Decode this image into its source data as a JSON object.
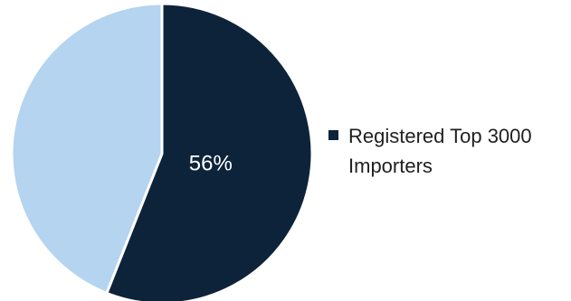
{
  "chart_data": {
    "type": "pie",
    "title": "",
    "slices": [
      {
        "name": "Registered Top 3000 Importers",
        "value": 56,
        "label": "56%",
        "color": "#0d233a",
        "in_legend": true
      },
      {
        "name": "",
        "value": 44,
        "label": "",
        "color": "#b4d4ef",
        "in_legend": false
      }
    ],
    "start_angle_deg": 0,
    "direction": "clockwise",
    "legend": {
      "position": "right",
      "entries": [
        "Registered Top 3000 Importers"
      ]
    }
  }
}
